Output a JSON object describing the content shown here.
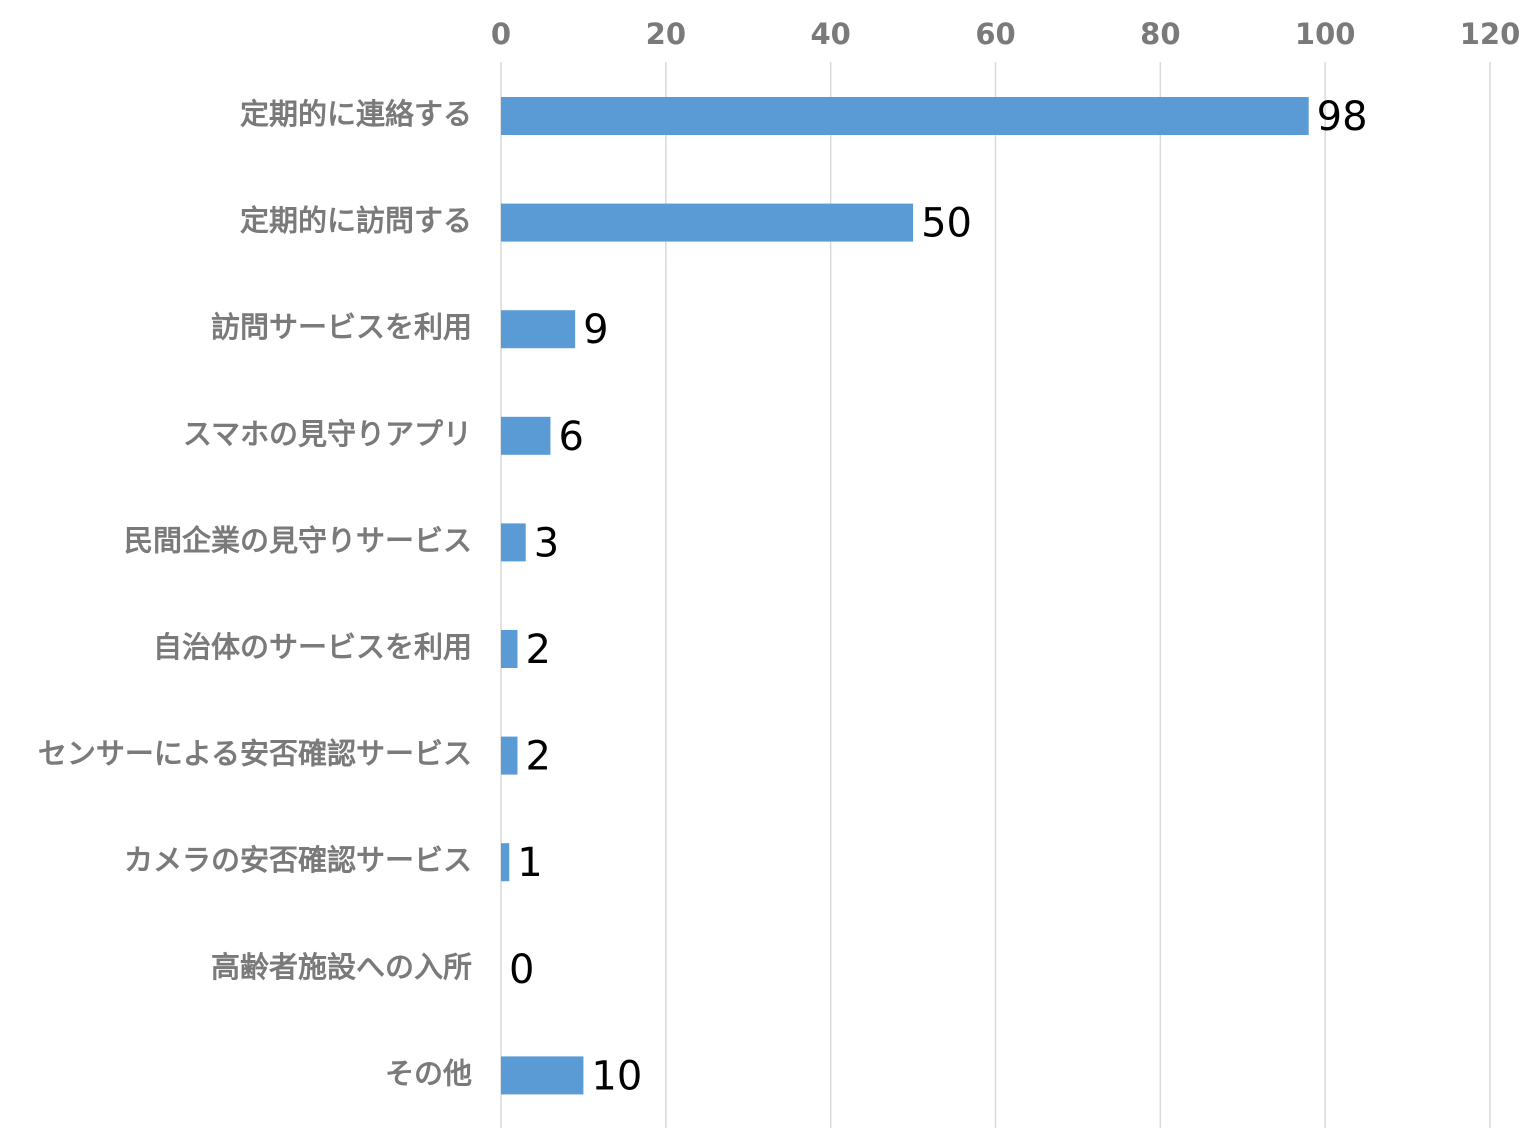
{
  "chart_data": {
    "type": "bar",
    "orientation": "horizontal",
    "categories": [
      "定期的に連絡する",
      "定期的に訪問する",
      "訪問サービスを利用",
      "スマホの見守りアプリ",
      "民間企業の見守りサービス",
      "自治体のサービスを利用",
      "センサーによる安否確認サービス",
      "カメラの安否確認サービス",
      "高齢者施設への入所",
      "その他"
    ],
    "values": [
      98,
      50,
      9,
      6,
      3,
      2,
      2,
      1,
      0,
      10
    ],
    "data_labels": [
      "98",
      "50",
      "9",
      "6",
      "3",
      "2",
      "2",
      "1",
      "0",
      "10"
    ],
    "xlim": [
      0,
      120
    ],
    "x_ticks": [
      "0",
      "20",
      "40",
      "60",
      "80",
      "100",
      "120"
    ],
    "x_axis_position": "top",
    "grid": true,
    "legend": "none",
    "colors": {
      "bar": "#5b9bd5",
      "gridline": "#d9d9d9",
      "tick_text": "#7a7a7a",
      "label_text": "#000000"
    }
  }
}
